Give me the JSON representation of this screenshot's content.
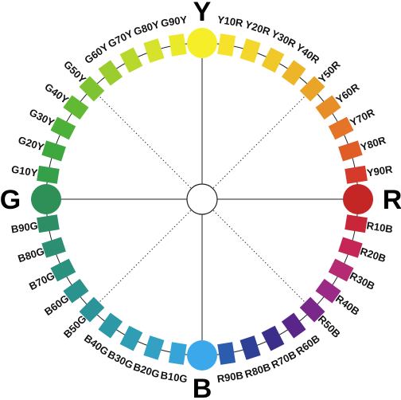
{
  "primaries": [
    {
      "label": "Y",
      "color": "#f7ee2a"
    },
    {
      "label": "R",
      "color": "#c42525"
    },
    {
      "label": "B",
      "color": "#3aa8ea"
    },
    {
      "label": "G",
      "color": "#2e8f57"
    }
  ],
  "steps": [
    {
      "label": "Y10R",
      "color": "#f6e22a"
    },
    {
      "label": "Y20R",
      "color": "#f3d72a"
    },
    {
      "label": "Y30R",
      "color": "#f0c82a"
    },
    {
      "label": "Y40R",
      "color": "#edb629"
    },
    {
      "label": "Y50R",
      "color": "#eaa428"
    },
    {
      "label": "Y60R",
      "color": "#e78e28"
    },
    {
      "label": "Y70R",
      "color": "#e47528"
    },
    {
      "label": "Y80R",
      "color": "#e05d28"
    },
    {
      "label": "Y90R",
      "color": "#d63a2a"
    },
    {
      "label": "R10B",
      "color": "#c8273a"
    },
    {
      "label": "R20B",
      "color": "#c52655"
    },
    {
      "label": "R30B",
      "color": "#b52a72"
    },
    {
      "label": "R40B",
      "color": "#9a2a86"
    },
    {
      "label": "R50B",
      "color": "#7a278a"
    },
    {
      "label": "R60B",
      "color": "#5a2588"
    },
    {
      "label": "R70B",
      "color": "#3b2d8a"
    },
    {
      "label": "R80B",
      "color": "#2e3f96"
    },
    {
      "label": "R90B",
      "color": "#2b5cae"
    },
    {
      "label": "B10G",
      "color": "#36a4d8"
    },
    {
      "label": "B20G",
      "color": "#32a1c4"
    },
    {
      "label": "B30G",
      "color": "#2f9db4"
    },
    {
      "label": "B40G",
      "color": "#2d98a6"
    },
    {
      "label": "B50G",
      "color": "#2b9499"
    },
    {
      "label": "B60G",
      "color": "#2b938d"
    },
    {
      "label": "B70G",
      "color": "#2b917f"
    },
    {
      "label": "B80G",
      "color": "#2c8f73"
    },
    {
      "label": "B90G",
      "color": "#2d8e66"
    },
    {
      "label": "G10Y",
      "color": "#34a14a"
    },
    {
      "label": "G20Y",
      "color": "#3ea83f"
    },
    {
      "label": "G30Y",
      "color": "#4db038"
    },
    {
      "label": "G40Y",
      "color": "#62b934"
    },
    {
      "label": "G50Y",
      "color": "#7ec331"
    },
    {
      "label": "G60Y",
      "color": "#9bcd2e"
    },
    {
      "label": "G70Y",
      "color": "#b9d82c"
    },
    {
      "label": "G80Y",
      "color": "#d6e22b"
    },
    {
      "label": "G90Y",
      "color": "#ebea2a"
    }
  ]
}
